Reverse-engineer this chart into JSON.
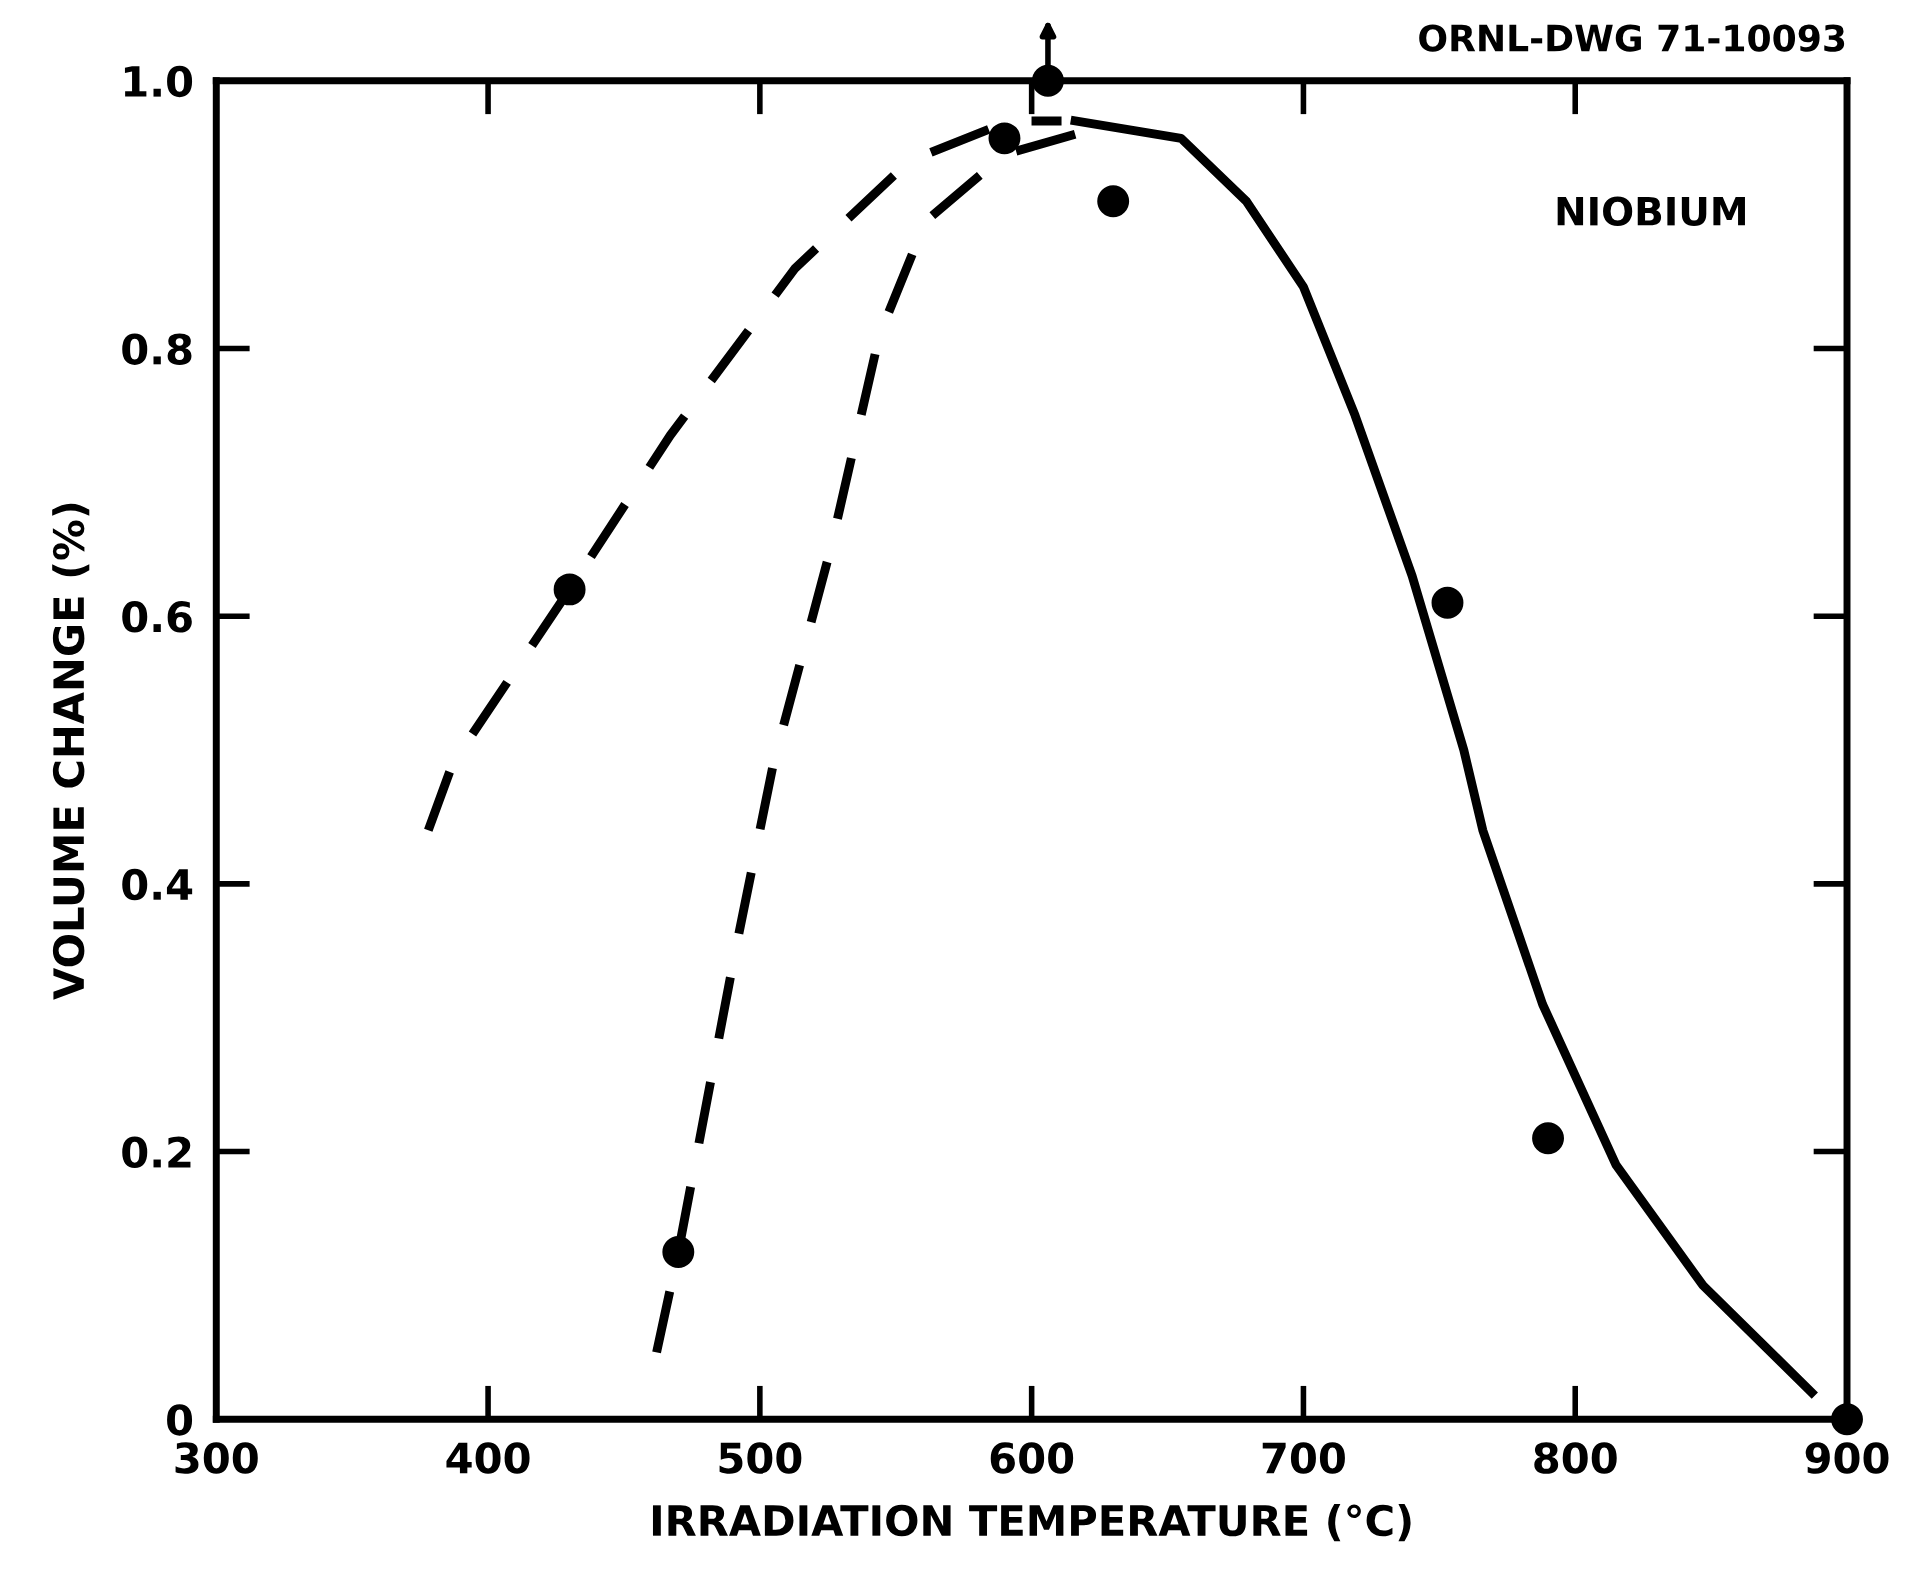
{
  "chart_data": {
    "type": "line",
    "xlabel": "IRRADIATION TEMPERATURE (°C)",
    "ylabel": "VOLUME CHANGE (%)",
    "annotations": [
      "ORNL-DWG 71-10093",
      "NIOBIUM"
    ],
    "xlim": [
      300,
      900
    ],
    "ylim": [
      0,
      1.0
    ],
    "xticks": [
      300,
      400,
      500,
      600,
      700,
      800,
      900
    ],
    "yticks": [
      0,
      0.2,
      0.4,
      0.6,
      0.8,
      {
        "value": 1.0,
        "label": "1.0"
      }
    ],
    "grid": false,
    "series": [
      {
        "type": "scatter",
        "color": "#000000",
        "marker": "circle",
        "x": [
          430,
          470,
          590,
          606,
          630,
          753,
          790,
          900
        ],
        "values": [
          0.62,
          0.125,
          0.957,
          1.0,
          0.91,
          0.61,
          0.21,
          0.0
        ]
      },
      {
        "color": "#000000",
        "line_style": "dashed",
        "x": [
          378,
          387,
          430,
          467,
          513,
          555,
          592,
          611
        ],
        "values": [
          0.44,
          0.49,
          0.62,
          0.735,
          0.86,
          0.94,
          0.97,
          0.97
        ]
      },
      {
        "color": "#000000",
        "line_style": "dashed",
        "x": [
          462,
          470,
          491,
          505,
          526,
          544,
          561,
          590,
          616
        ],
        "values": [
          0.05,
          0.125,
          0.35,
          0.49,
          0.65,
          0.81,
          0.895,
          0.945,
          0.96
        ]
      },
      {
        "color": "#000000",
        "line_style": "solid",
        "x": [
          616,
          655,
          679,
          700,
          719,
          740,
          759,
          766,
          788,
          815,
          847,
          887
        ],
        "values": [
          0.97,
          0.957,
          0.91,
          0.846,
          0.75,
          0.63,
          0.5,
          0.44,
          0.31,
          0.19,
          0.1,
          0.02
        ]
      }
    ]
  }
}
